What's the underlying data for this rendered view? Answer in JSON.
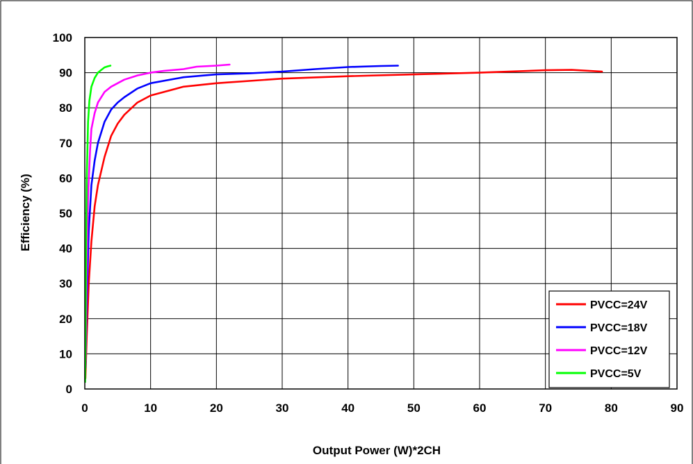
{
  "chart_data": {
    "type": "line",
    "title": "",
    "xlabel": "Output Power (W)*2CH",
    "ylabel": "Efficiency (%)",
    "xlim": [
      0,
      90
    ],
    "ylim": [
      0,
      100
    ],
    "x_ticks": [
      "0",
      "10",
      "20",
      "30",
      "40",
      "50",
      "60",
      "70",
      "80",
      "90"
    ],
    "y_ticks": [
      "0",
      "10",
      "20",
      "30",
      "40",
      "50",
      "60",
      "70",
      "80",
      "90",
      "100"
    ],
    "grid": true,
    "legend_position": "bottom-right",
    "series": [
      {
        "name": "PVCC=24V",
        "color": "#ff0000",
        "x": [
          0.1,
          0.3,
          0.6,
          1,
          1.5,
          2,
          3,
          4,
          5,
          6,
          8,
          10,
          15,
          20,
          30,
          40,
          50,
          60,
          70,
          74,
          78.6
        ],
        "y": [
          3,
          15,
          30,
          42,
          52,
          58,
          66,
          72,
          75.5,
          78,
          81.5,
          83.5,
          86,
          87,
          88.3,
          89,
          89.5,
          90,
          90.7,
          90.8,
          90.3
        ]
      },
      {
        "name": "PVCC=18V",
        "color": "#0000ff",
        "x": [
          0.1,
          0.3,
          0.6,
          1,
          1.5,
          2,
          3,
          4,
          5,
          6,
          8,
          10,
          15,
          20,
          25,
          30,
          35,
          40,
          45,
          47.6
        ],
        "y": [
          6,
          25,
          45,
          58,
          65,
          70,
          76,
          79.5,
          81.5,
          83,
          85.5,
          87,
          88.7,
          89.5,
          89.8,
          90.3,
          91,
          91.6,
          91.9,
          92
        ]
      },
      {
        "name": "PVCC=12V",
        "color": "#ff00ff",
        "x": [
          0.1,
          0.3,
          0.5,
          0.8,
          1,
          1.5,
          2,
          3,
          4,
          6,
          8,
          10,
          12,
          15,
          17,
          18,
          20,
          22
        ],
        "y": [
          8,
          35,
          55,
          68,
          74,
          78.5,
          81.5,
          84.5,
          86,
          88,
          89.2,
          90,
          90.5,
          91,
          91.7,
          91.8,
          92,
          92.3
        ]
      },
      {
        "name": "PVCC=5V",
        "color": "#00ff00",
        "x": [
          0.05,
          0.1,
          0.2,
          0.3,
          0.5,
          0.7,
          1,
          1.5,
          2,
          2.5,
          3,
          3.5,
          3.9
        ],
        "y": [
          2,
          12,
          40,
          60,
          76,
          82,
          86,
          88.5,
          90,
          90.8,
          91.5,
          91.8,
          92
        ]
      }
    ]
  }
}
